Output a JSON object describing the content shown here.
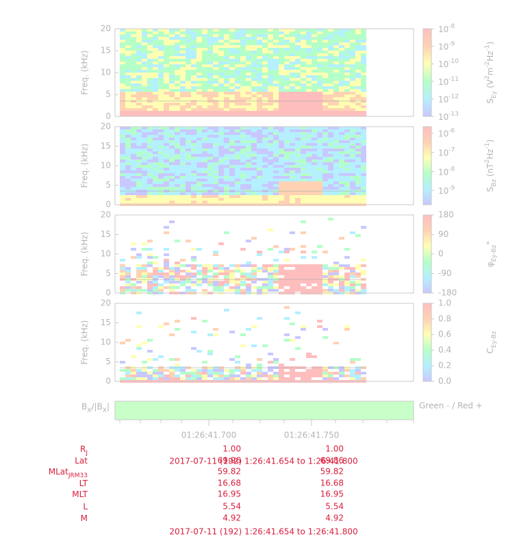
{
  "panels": [
    {
      "ylabel": "Freq. (kHz)",
      "ylim": [
        0,
        20
      ],
      "yticks": [
        0,
        5,
        10,
        15,
        20
      ],
      "colorbar": {
        "label": [
          {
            "t": "S"
          },
          {
            "t": "Ey",
            "sub": true
          },
          {
            "t": " (V"
          },
          {
            "t": "2",
            "sup": true
          },
          {
            "t": "m"
          },
          {
            "t": "-2",
            "sup": true
          },
          {
            "t": "Hz"
          },
          {
            "t": "-1",
            "sup": true
          },
          {
            "t": ")"
          }
        ],
        "log": true,
        "clim": [
          -13,
          -8
        ],
        "ticks": [
          {
            "value": -8,
            "base": "10",
            "exp": "-8"
          },
          {
            "value": -9,
            "base": "10",
            "exp": "-9"
          },
          {
            "value": -10,
            "base": "10",
            "exp": "-10"
          },
          {
            "value": -11,
            "base": "10",
            "exp": "-11"
          },
          {
            "value": -12,
            "base": "10",
            "exp": "-12"
          },
          {
            "value": -13,
            "base": "10",
            "exp": "-13"
          }
        ]
      }
    },
    {
      "ylabel": "Freq. (kHz)",
      "ylim": [
        0,
        20
      ],
      "yticks": [
        0,
        5,
        10,
        15,
        20
      ],
      "colorbar": {
        "label": [
          {
            "t": "S"
          },
          {
            "t": "Bz",
            "sub": true
          },
          {
            "t": " (nT"
          },
          {
            "t": "2",
            "sup": true
          },
          {
            "t": "Hz"
          },
          {
            "t": "-1",
            "sup": true
          },
          {
            "t": ")"
          }
        ],
        "log": true,
        "clim": [
          -9.75,
          -5.65
        ],
        "ticks": [
          {
            "value": -6,
            "base": "10",
            "exp": "-6"
          },
          {
            "value": -7,
            "base": "10",
            "exp": "-7"
          },
          {
            "value": -8,
            "base": "10",
            "exp": "-8"
          },
          {
            "value": -9,
            "base": "10",
            "exp": "-9"
          }
        ]
      }
    },
    {
      "ylabel": "Freq. (kHz)",
      "ylim": [
        0,
        20
      ],
      "yticks": [
        0,
        5,
        10,
        15,
        20
      ],
      "colorbar": {
        "label": [
          {
            "t": "φ"
          },
          {
            "t": "Ey-Bz",
            "sub": true
          },
          {
            "t": "°"
          }
        ],
        "log": false,
        "clim": [
          -180,
          180
        ],
        "ticks": [
          180,
          90,
          0,
          -90,
          -180
        ]
      }
    },
    {
      "ylabel": "Freq. (kHz)",
      "ylim": [
        0,
        20
      ],
      "yticks": [
        0,
        5,
        10,
        15,
        20
      ],
      "colorbar": {
        "label": [
          {
            "t": "C"
          },
          {
            "t": "Ey-Bz",
            "sub": true
          }
        ],
        "log": false,
        "clim": [
          0,
          1
        ],
        "ticks": [
          {
            "value": 1,
            "label": "1.0"
          },
          {
            "value": 0.8,
            "label": "0.8"
          },
          {
            "value": 0.6,
            "label": "0.6"
          },
          {
            "value": 0.4,
            "label": "0.4"
          },
          {
            "value": 0.2,
            "label": "0.2"
          },
          {
            "value": 0,
            "label": "0.0"
          }
        ]
      }
    }
  ],
  "bx": {
    "label": [
      {
        "t": "B"
      },
      {
        "t": "X",
        "sub": true
      },
      {
        "t": "/|B"
      },
      {
        "t": "X",
        "sub": true
      },
      {
        "t": "|"
      }
    ],
    "legend": "Green - / Red +"
  },
  "xticks": [
    "01:26:41.700",
    "01:26:41.750"
  ],
  "ephemeris": [
    {
      "label": [
        {
          "t": "R"
        },
        {
          "t": "J",
          "sub": true
        }
      ],
      "values": [
        "1.00",
        "1.00"
      ]
    },
    {
      "label": [
        {
          "t": "Lat"
        }
      ],
      "values": [
        "69.96",
        "69.86"
      ]
    },
    {
      "label": [
        {
          "t": "MLat"
        },
        {
          "t": "JRM33",
          "sub": true
        }
      ],
      "values": [
        "59.82",
        "59.82"
      ]
    },
    {
      "label": [
        {
          "t": "LT"
        }
      ],
      "values": [
        "16.68",
        "16.68"
      ]
    },
    {
      "label": [
        {
          "t": "MLT"
        }
      ],
      "values": [
        "16.95",
        "16.95"
      ]
    },
    {
      "label": [
        {
          "t": "L"
        }
      ],
      "values": [
        "5.54",
        "5.54"
      ]
    },
    {
      "label": [
        {
          "t": "M"
        }
      ],
      "values": [
        "4.92",
        "4.92"
      ]
    }
  ],
  "footer": "2017-07-11 (192) 1:26:41.654 to 1:26:41.800"
}
